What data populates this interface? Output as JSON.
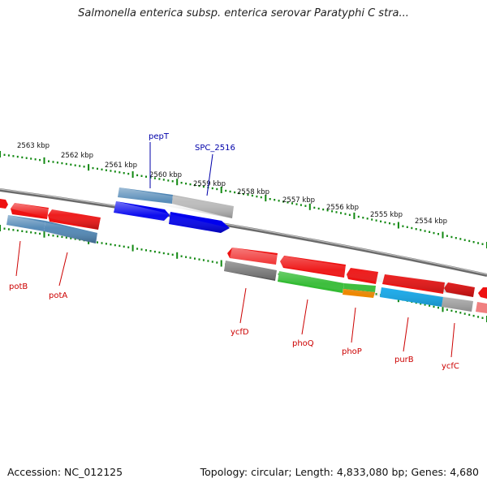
{
  "title": "Salmonella enterica subsp. enterica serovar Paratyphi C stra...",
  "footer": {
    "accession": "Accession: NC_012125",
    "topology": "Topology: circular; Length: 4,833,080 bp; Genes: 4,680"
  },
  "colors": {
    "forward_gene": "#ee1111",
    "reverse_gene": "#ee1111",
    "cds_steelblue": "#4f86b5",
    "cds_blue": "#0000ee",
    "cds_grey": "#bbbbbb",
    "cds_dark": "#555555",
    "cds_green": "#33bb33",
    "cds_orange": "#ee8800",
    "cds_cyan": "#11aaee",
    "tick": "#118811",
    "backbone": "#777777",
    "upper_label": "#0000aa",
    "lower_label": "#cc0000"
  },
  "scale": {
    "unit": "kbp",
    "labels": [
      "2563 kbp",
      "2562 kbp",
      "2561 kbp",
      "2560 kbp",
      "2559 kbp",
      "2558 kbp",
      "2557 kbp",
      "2556 kbp",
      "2555 kbp",
      "2554 kbp"
    ]
  },
  "upper_labels": [
    "pepT",
    "SPC_2516"
  ],
  "lower_labels": [
    "potB",
    "potA",
    "ycfD",
    "phoQ",
    "phoP",
    "purB",
    "ycfC"
  ]
}
